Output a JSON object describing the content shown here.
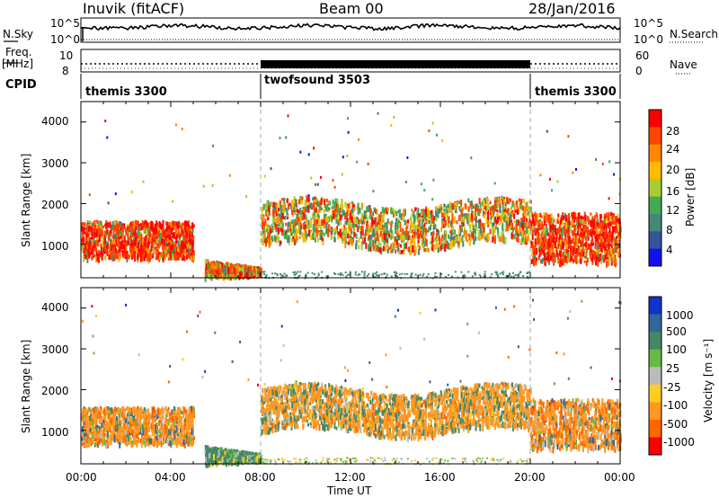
{
  "header": {
    "station": "Inuvik (fitACF)",
    "beam": "Beam 00",
    "date": "28/Jan/2016"
  },
  "top_panels": {
    "nsky_label": "N.Sky",
    "nsky_ticks": [
      "10^5",
      "10^0"
    ],
    "nsearch_label": "N.Search",
    "nsearch_ticks": [
      "10^5",
      "10^0"
    ],
    "freq_label": "Freq.",
    "freq_unit": "[MHz]",
    "freq_ticks": [
      "10",
      "8"
    ],
    "nave_label": "Nave",
    "nave_ticks": [
      "60",
      "0"
    ],
    "cpid_label": "CPID",
    "cpid_segments": [
      {
        "name": "themis 3300",
        "start_hour": 0,
        "end_hour": 8
      },
      {
        "name": "twofsound 3503",
        "start_hour": 8,
        "end_hour": 20
      },
      {
        "name": "themis 3300",
        "start_hour": 20,
        "end_hour": 24
      }
    ]
  },
  "power_colorbar": {
    "label": "Power [dB]",
    "ticks": [
      "28",
      "24",
      "20",
      "16",
      "12",
      "8",
      "4"
    ],
    "colors": [
      "#ff0000",
      "#ff4400",
      "#ff8800",
      "#ffbb00",
      "#aacc33",
      "#44aa55",
      "#448877",
      "#335599",
      "#1111ee"
    ]
  },
  "velocity_colorbar": {
    "label": "Velocity [m s⁻¹]",
    "ticks": [
      "1000",
      "500",
      "100",
      "25",
      "-25",
      "-100",
      "-500",
      "-1000"
    ],
    "colors": [
      "#1133cc",
      "#336699",
      "#448866",
      "#66bb44",
      "#bbbbbb",
      "#ffcc22",
      "#ff9922",
      "#ff6600",
      "#ff0000"
    ]
  },
  "chart_data": [
    {
      "type": "heatmap",
      "title": "",
      "ylabel": "Slant Range [km]",
      "xlabel": "",
      "ylim": [
        180,
        4500
      ],
      "yticks": [
        1000,
        2000,
        3000,
        4000
      ],
      "xlim": [
        0,
        24
      ],
      "xticks": [
        "00:00",
        "04:00",
        "08:00",
        "12:00",
        "16:00",
        "20:00",
        "00:00"
      ],
      "colorbar": "Power [dB]",
      "scatter_bands": [
        {
          "hours": [
            0,
            5
          ],
          "range_km": [
            700,
            1600
          ],
          "typical_power_db": 26
        },
        {
          "hours": [
            5.5,
            8
          ],
          "range_km": [
            200,
            700
          ],
          "typical_power_db": 24
        },
        {
          "hours": [
            8,
            20
          ],
          "range_km": [
            900,
            2200
          ],
          "typical_power_db": 16
        },
        {
          "hours": [
            20,
            24
          ],
          "range_km": [
            600,
            1800
          ],
          "typical_power_db": 26
        }
      ]
    },
    {
      "type": "heatmap",
      "title": "",
      "ylabel": "Slant Range [km]",
      "xlabel": "Time UT",
      "ylim": [
        180,
        4500
      ],
      "yticks": [
        1000,
        2000,
        3000,
        4000
      ],
      "xlim": [
        0,
        24
      ],
      "xticks": [
        "00:00",
        "04:00",
        "08:00",
        "12:00",
        "16:00",
        "20:00",
        "00:00"
      ],
      "colorbar": "Velocity [m s⁻¹]",
      "scatter_bands": [
        {
          "hours": [
            0,
            5
          ],
          "range_km": [
            700,
            1600
          ],
          "typical_velocity_ms": -100
        },
        {
          "hours": [
            5.5,
            8
          ],
          "range_km": [
            200,
            700
          ],
          "typical_velocity_ms": 100
        },
        {
          "hours": [
            8,
            20
          ],
          "range_km": [
            900,
            2200
          ],
          "typical_velocity_ms": -100
        },
        {
          "hours": [
            20,
            24
          ],
          "range_km": [
            600,
            1800
          ],
          "typical_velocity_ms": -100
        }
      ]
    }
  ]
}
